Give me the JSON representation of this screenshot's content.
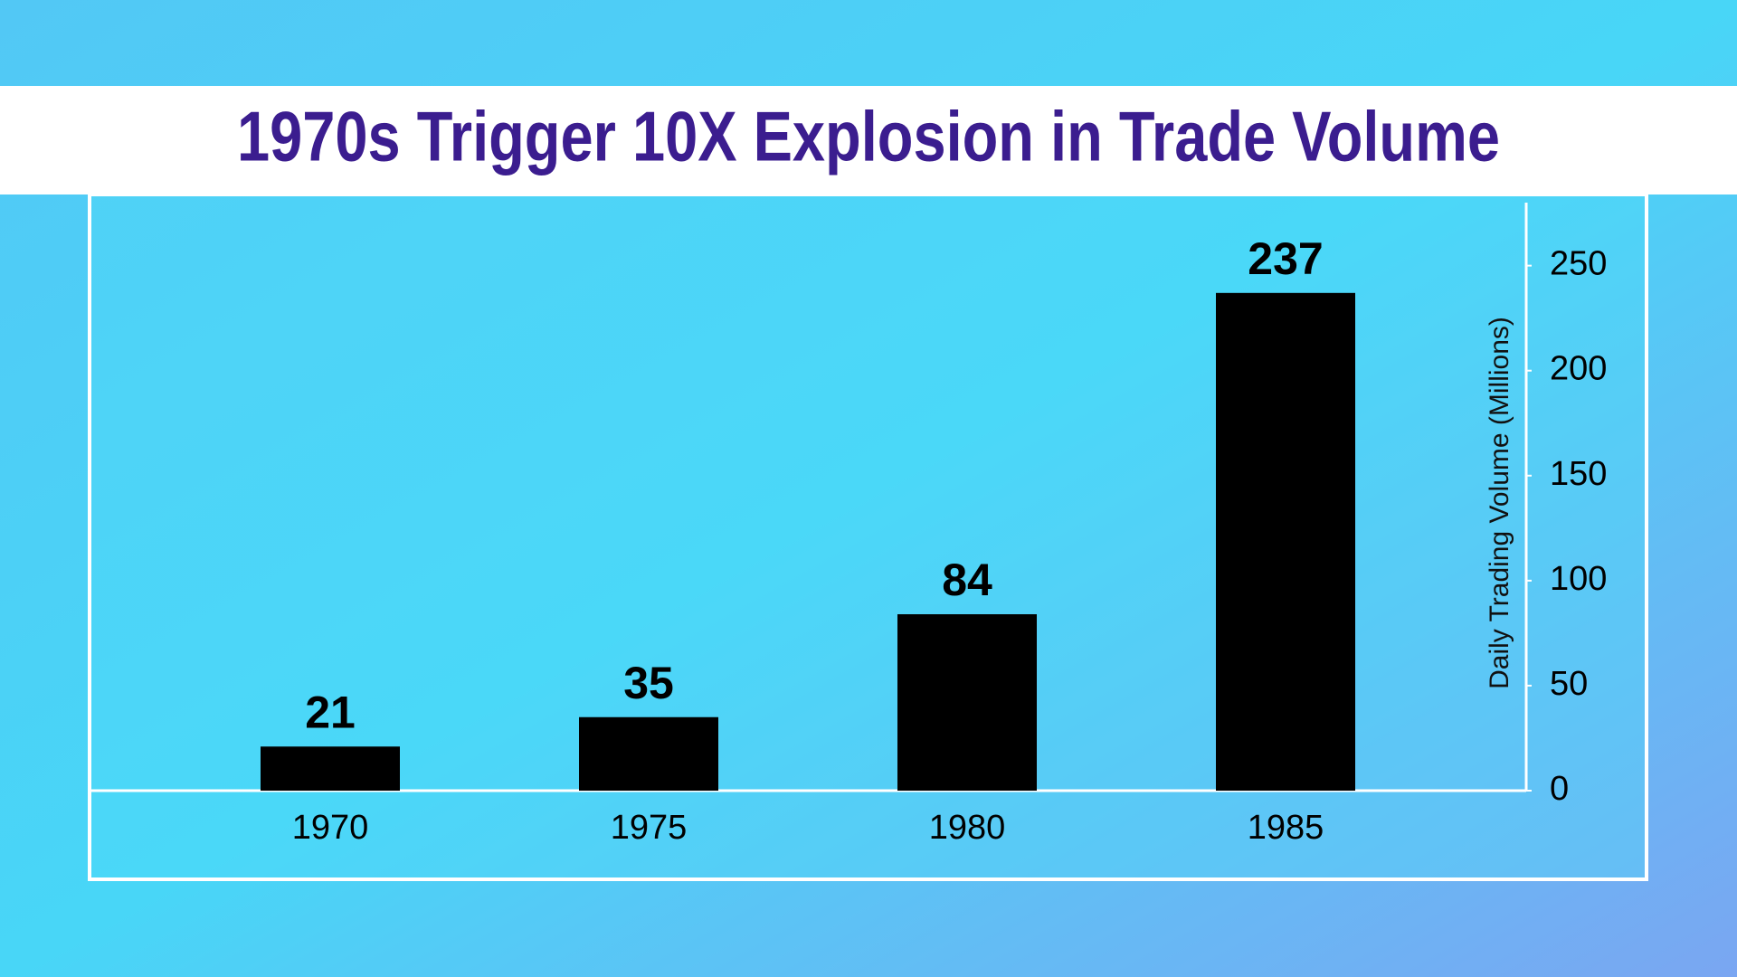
{
  "chart_data": {
    "type": "bar",
    "title": "1970s Trigger 10X Explosion in Trade Volume",
    "y_label": "Daily Trading Volume (Millions)",
    "categories": [
      "1970",
      "1975",
      "1980",
      "1985"
    ],
    "values": [
      21,
      35,
      84,
      237
    ],
    "color": "#000000",
    "ylim": [
      0,
      280
    ],
    "yticks": [
      0,
      50,
      100,
      150,
      200,
      250
    ],
    "axis_side": "right"
  }
}
